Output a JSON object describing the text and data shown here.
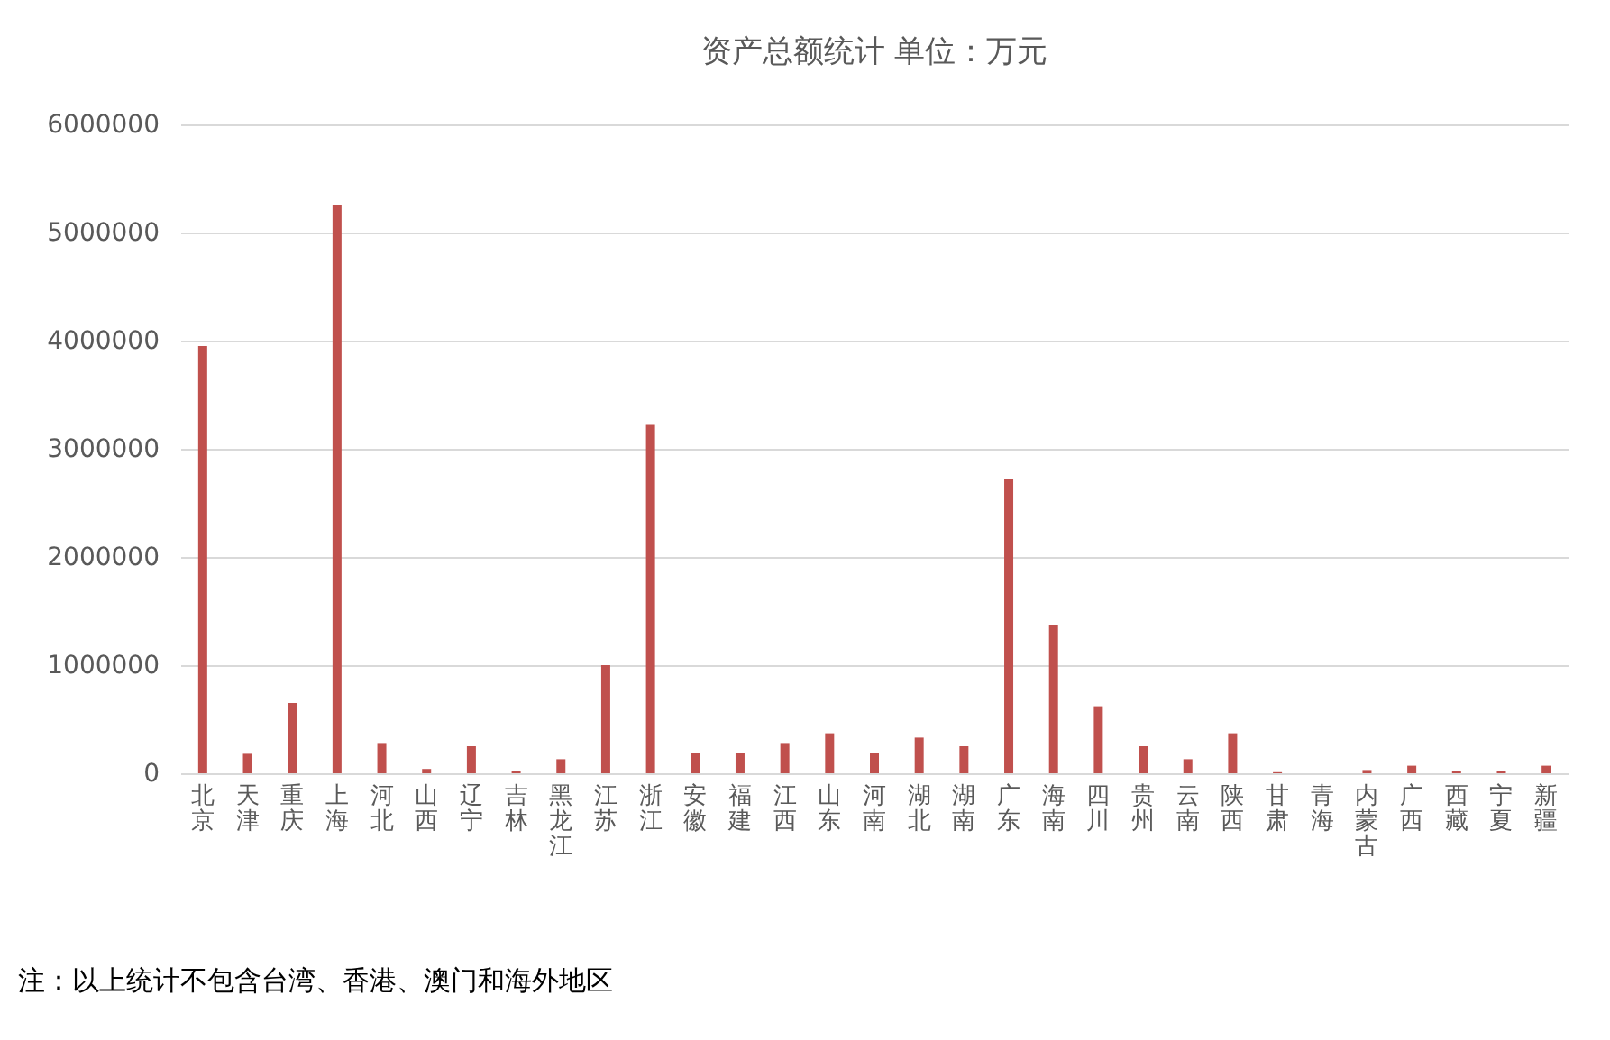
{
  "chart_data": {
    "type": "bar",
    "title": "资产总额统计      单位：万元",
    "categories": [
      "北京",
      "天津",
      "重庆",
      "上海",
      "河北",
      "山西",
      "辽宁",
      "吉林",
      "黑龙江",
      "江苏",
      "浙江",
      "安徽",
      "福建",
      "江西",
      "山东",
      "河南",
      "湖北",
      "湖南",
      "广东",
      "海南",
      "四川",
      "贵州",
      "云南",
      "陕西",
      "甘肃",
      "青海",
      "内蒙古",
      "广西",
      "西藏",
      "宁夏",
      "新疆"
    ],
    "values": [
      3950000,
      180000,
      650000,
      5250000,
      280000,
      40000,
      250000,
      20000,
      130000,
      1000000,
      3220000,
      190000,
      190000,
      280000,
      370000,
      190000,
      330000,
      250000,
      2720000,
      1370000,
      620000,
      250000,
      130000,
      370000,
      10000,
      0,
      30000,
      70000,
      20000,
      20000,
      70000
    ],
    "color": "#c0504d",
    "ylim": [
      0,
      6000000
    ],
    "yticks": [
      0,
      1000000,
      2000000,
      3000000,
      4000000,
      5000000,
      6000000
    ],
    "grid": "y",
    "annotations": [
      "注：以上统计不包含台湾、香港、澳门和海外地区"
    ]
  }
}
